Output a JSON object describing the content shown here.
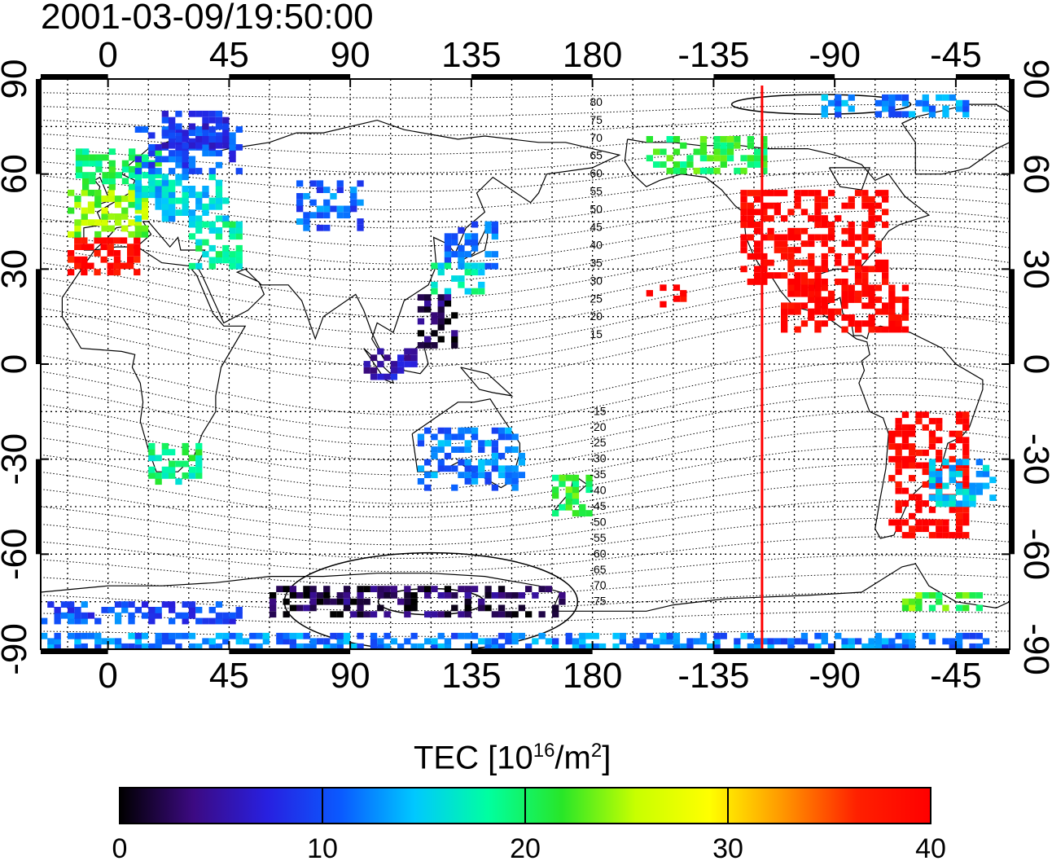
{
  "title": "2001-03-09/19:50:00",
  "top_lon_ticks": [
    "0",
    "45",
    "90",
    "135",
    "180",
    "-135",
    "-90",
    "-45"
  ],
  "bottom_lon_ticks": [
    "0",
    "45",
    "90",
    "135",
    "180",
    "-135",
    "-90",
    "-45"
  ],
  "left_lat_ticks": [
    "90",
    "60",
    "30",
    "0",
    "-30",
    "-60",
    "-90"
  ],
  "right_lat_ticks": [
    "90",
    "60",
    "30",
    "0",
    "-30",
    "-60",
    "-90"
  ],
  "contour_labels": [
    "80",
    "75",
    "70",
    "65",
    "60",
    "55",
    "50",
    "45",
    "40",
    "35",
    "30",
    "25",
    "20",
    "15",
    "-15",
    "-20",
    "-25",
    "-30",
    "-35",
    "-40",
    "-45",
    "-50",
    "-55",
    "-60",
    "-65",
    "-70",
    "-75"
  ],
  "colorbar": {
    "title_pre": "TEC  [10",
    "title_exp1": "16",
    "title_mid": "/m",
    "title_exp2": "2",
    "title_post": "]",
    "min": 0,
    "max": 40,
    "ticks": [
      "0",
      "10",
      "20",
      "30",
      "40"
    ],
    "colors": [
      "#000000",
      "#3c0a82",
      "#2820e0",
      "#0a5aff",
      "#00c8ff",
      "#00ffa0",
      "#28e628",
      "#c8ff00",
      "#ffff00",
      "#ff9600",
      "#ff2000",
      "#ff0000"
    ]
  },
  "terminator_longitude": -117,
  "terminator_color": "#ff0000",
  "chart_data": {
    "type": "heatmap",
    "title": "2001-03-09/19:50:00",
    "x_range": [
      -25,
      335
    ],
    "y_range": [
      -90,
      90
    ],
    "value_range": [
      0,
      40
    ],
    "legend": "TEC  [10^16/m^2]",
    "regions": [
      {
        "lon": [
          -15,
          12
        ],
        "lat": [
          28,
          40
        ],
        "tec": 39
      },
      {
        "lon": [
          -15,
          15
        ],
        "lat": [
          40,
          55
        ],
        "tec": 24
      },
      {
        "lon": [
          -12,
          20
        ],
        "lat": [
          55,
          68
        ],
        "tec": 20
      },
      {
        "lon": [
          10,
          45
        ],
        "lat": [
          45,
          60
        ],
        "tec": 15
      },
      {
        "lon": [
          10,
          50
        ],
        "lat": [
          60,
          75
        ],
        "tec": 10
      },
      {
        "lon": [
          20,
          45
        ],
        "lat": [
          68,
          80
        ],
        "tec": 8
      },
      {
        "lon": [
          30,
          50
        ],
        "lat": [
          30,
          45
        ],
        "tec": 18
      },
      {
        "lon": [
          70,
          95
        ],
        "lat": [
          42,
          58
        ],
        "tec": 11
      },
      {
        "lon": [
          125,
          145
        ],
        "lat": [
          30,
          45
        ],
        "tec": 11
      },
      {
        "lon": [
          120,
          140
        ],
        "lat": [
          22,
          32
        ],
        "tec": 17
      },
      {
        "lon": [
          115,
          130
        ],
        "lat": [
          5,
          22
        ],
        "tec": 2
      },
      {
        "lon": [
          95,
          115
        ],
        "lat": [
          -5,
          5
        ],
        "tec": 6
      },
      {
        "lon": [
          15,
          35
        ],
        "lat": [
          -38,
          -25
        ],
        "tec": 19
      },
      {
        "lon": [
          115,
          155
        ],
        "lat": [
          -40,
          -20
        ],
        "tec": 12
      },
      {
        "lon": [
          165,
          180
        ],
        "lat": [
          -48,
          -35
        ],
        "tec": 21
      },
      {
        "lon": [
          200,
          215
        ],
        "lat": [
          18,
          25
        ],
        "tec": 40
      },
      {
        "lon": [
          235,
          290
        ],
        "lat": [
          25,
          55
        ],
        "tec": 40
      },
      {
        "lon": [
          250,
          300
        ],
        "lat": [
          10,
          25
        ],
        "tec": 40
      },
      {
        "lon": [
          290,
          320
        ],
        "lat": [
          -55,
          -15
        ],
        "tec": 40
      },
      {
        "lon": [
          305,
          330
        ],
        "lat": [
          -45,
          -30
        ],
        "tec": 14
      },
      {
        "lon": [
          200,
          245
        ],
        "lat": [
          60,
          72
        ],
        "tec": 21
      },
      {
        "lon": [
          265,
          320
        ],
        "lat": [
          78,
          85
        ],
        "tec": 12
      },
      {
        "lon": [
          60,
          170
        ],
        "lat": [
          -80,
          -70
        ],
        "tec": 2
      },
      {
        "lon": [
          -25,
          50
        ],
        "lat": [
          -82,
          -75
        ],
        "tec": 10
      },
      {
        "lon": [
          -25,
          330
        ],
        "lat": [
          -90,
          -85
        ],
        "tec": 12
      },
      {
        "lon": [
          295,
          325
        ],
        "lat": [
          -78,
          -72
        ],
        "tec": 22
      }
    ]
  }
}
